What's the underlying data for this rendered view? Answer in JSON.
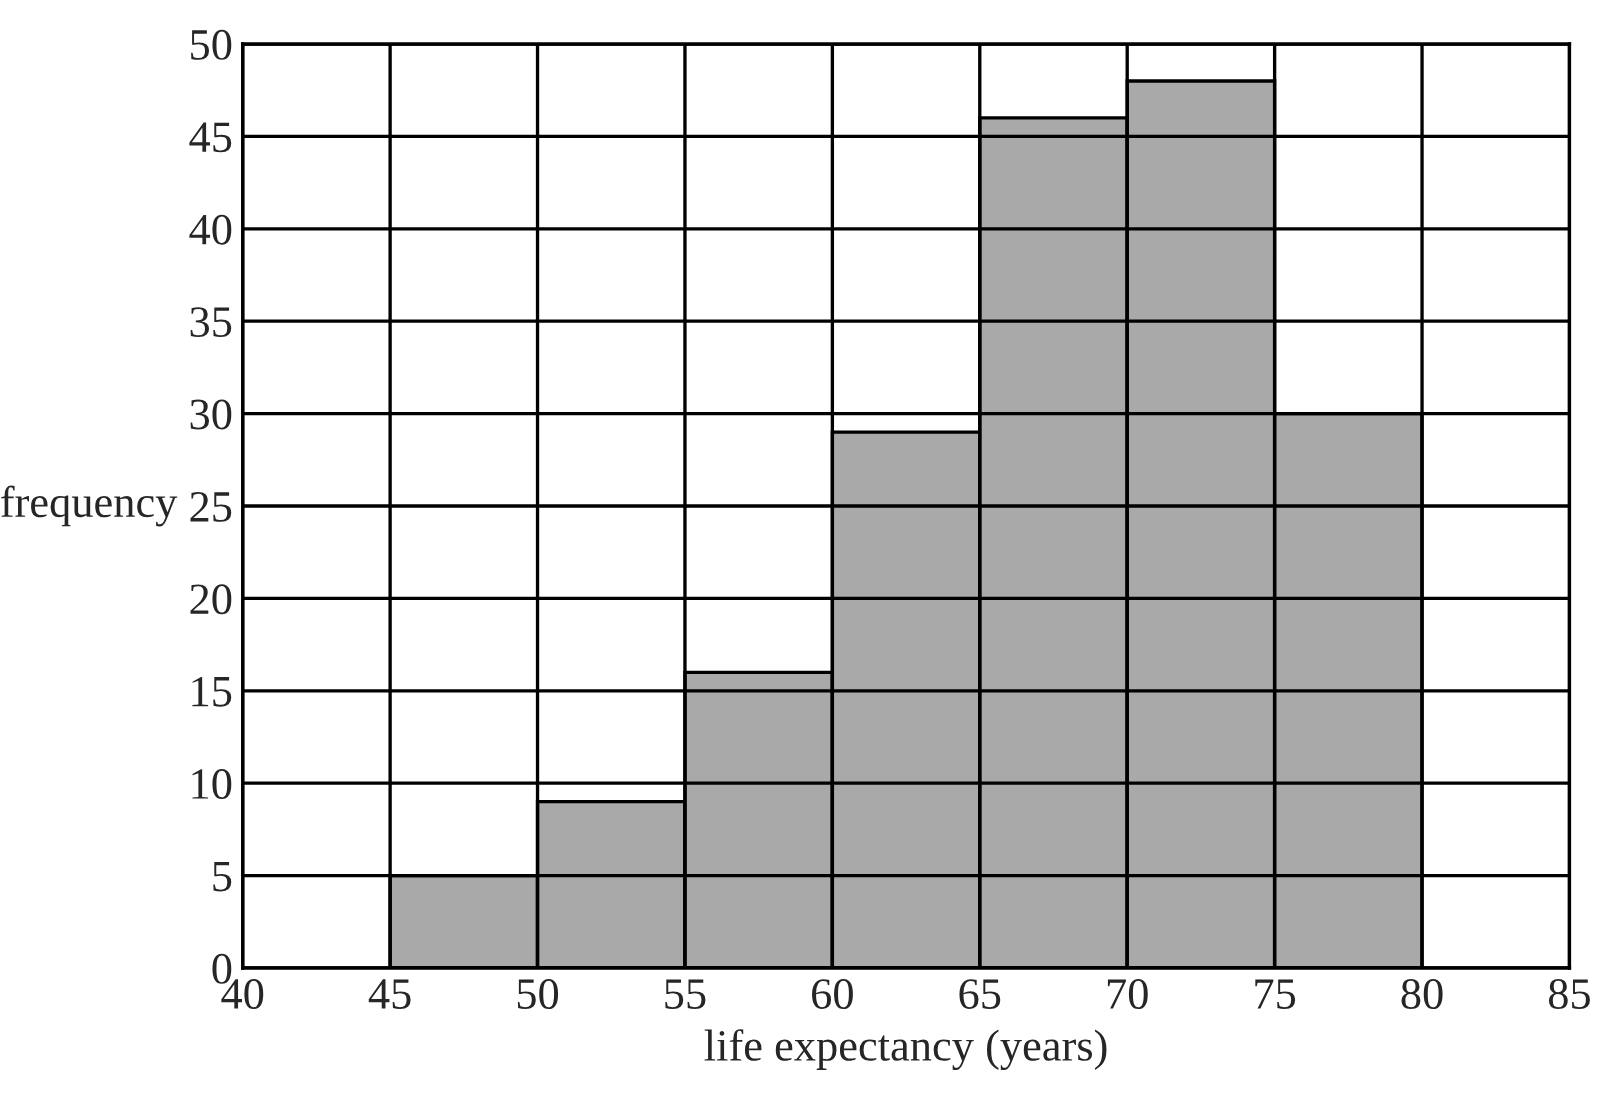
{
  "chart_data": {
    "type": "histogram",
    "xlabel": "life expectancy (years)",
    "ylabel": "frequency",
    "bins": [
      45,
      50,
      55,
      60,
      65,
      70,
      75,
      80
    ],
    "values": [
      5,
      9,
      16,
      29,
      46,
      48,
      30
    ],
    "color": "#a9a9a9",
    "xlim": [
      40,
      85
    ],
    "xticks": [
      40,
      45,
      50,
      55,
      60,
      65,
      70,
      75,
      80,
      85
    ],
    "ylim": [
      0,
      50
    ],
    "yticks": [
      0,
      5,
      10,
      15,
      20,
      25,
      30,
      35,
      40,
      45,
      50
    ],
    "grid": true
  }
}
